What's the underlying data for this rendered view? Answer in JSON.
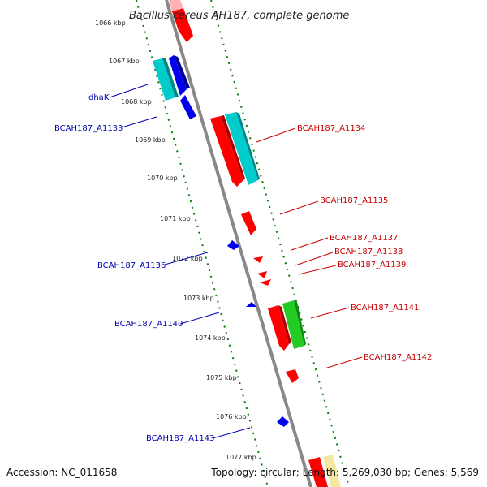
{
  "title": "Bacillus cereus AH187, complete genome",
  "accession": "Accession: NC_011658",
  "summary": "Topology: circular; Length: 5,269,030 bp; Genes: 5,569",
  "colors": {
    "forward_red": "#ff0000",
    "forward_cyan": "#00cccc",
    "forward_green": "#22cc22",
    "forward_yellow": "#f5e6a0",
    "reverse_blue": "#0000ee",
    "backbone": "#888888",
    "tick_green": "#0a7a0a",
    "label_blue": "#0000b4",
    "label_red": "#c80000"
  },
  "kbp_ticks": [
    "1066 kbp",
    "1067 kbp",
    "1068 kbp",
    "1069 kbp",
    "1070 kbp",
    "1071 kbp",
    "1072 kbp",
    "1073 kbp",
    "1074 kbp",
    "1075 kbp",
    "1076 kbp",
    "1077 kbp"
  ],
  "gene_labels": [
    {
      "text": "dhaK",
      "strand": "reverse"
    },
    {
      "text": "BCAH187_A1133",
      "strand": "reverse"
    },
    {
      "text": "BCAH187_A1134",
      "strand": "forward"
    },
    {
      "text": "BCAH187_A1135",
      "strand": "forward"
    },
    {
      "text": "BCAH187_A1136",
      "strand": "reverse"
    },
    {
      "text": "BCAH187_A1137",
      "strand": "forward"
    },
    {
      "text": "BCAH187_A1138",
      "strand": "forward"
    },
    {
      "text": "BCAH187_A1139",
      "strand": "forward"
    },
    {
      "text": "BCAH187_A1141",
      "strand": "forward"
    },
    {
      "text": "BCAH187_A1140",
      "strand": "reverse"
    },
    {
      "text": "BCAH187_A1142",
      "strand": "forward"
    },
    {
      "text": "BCAH187_A1143",
      "strand": "reverse"
    }
  ]
}
